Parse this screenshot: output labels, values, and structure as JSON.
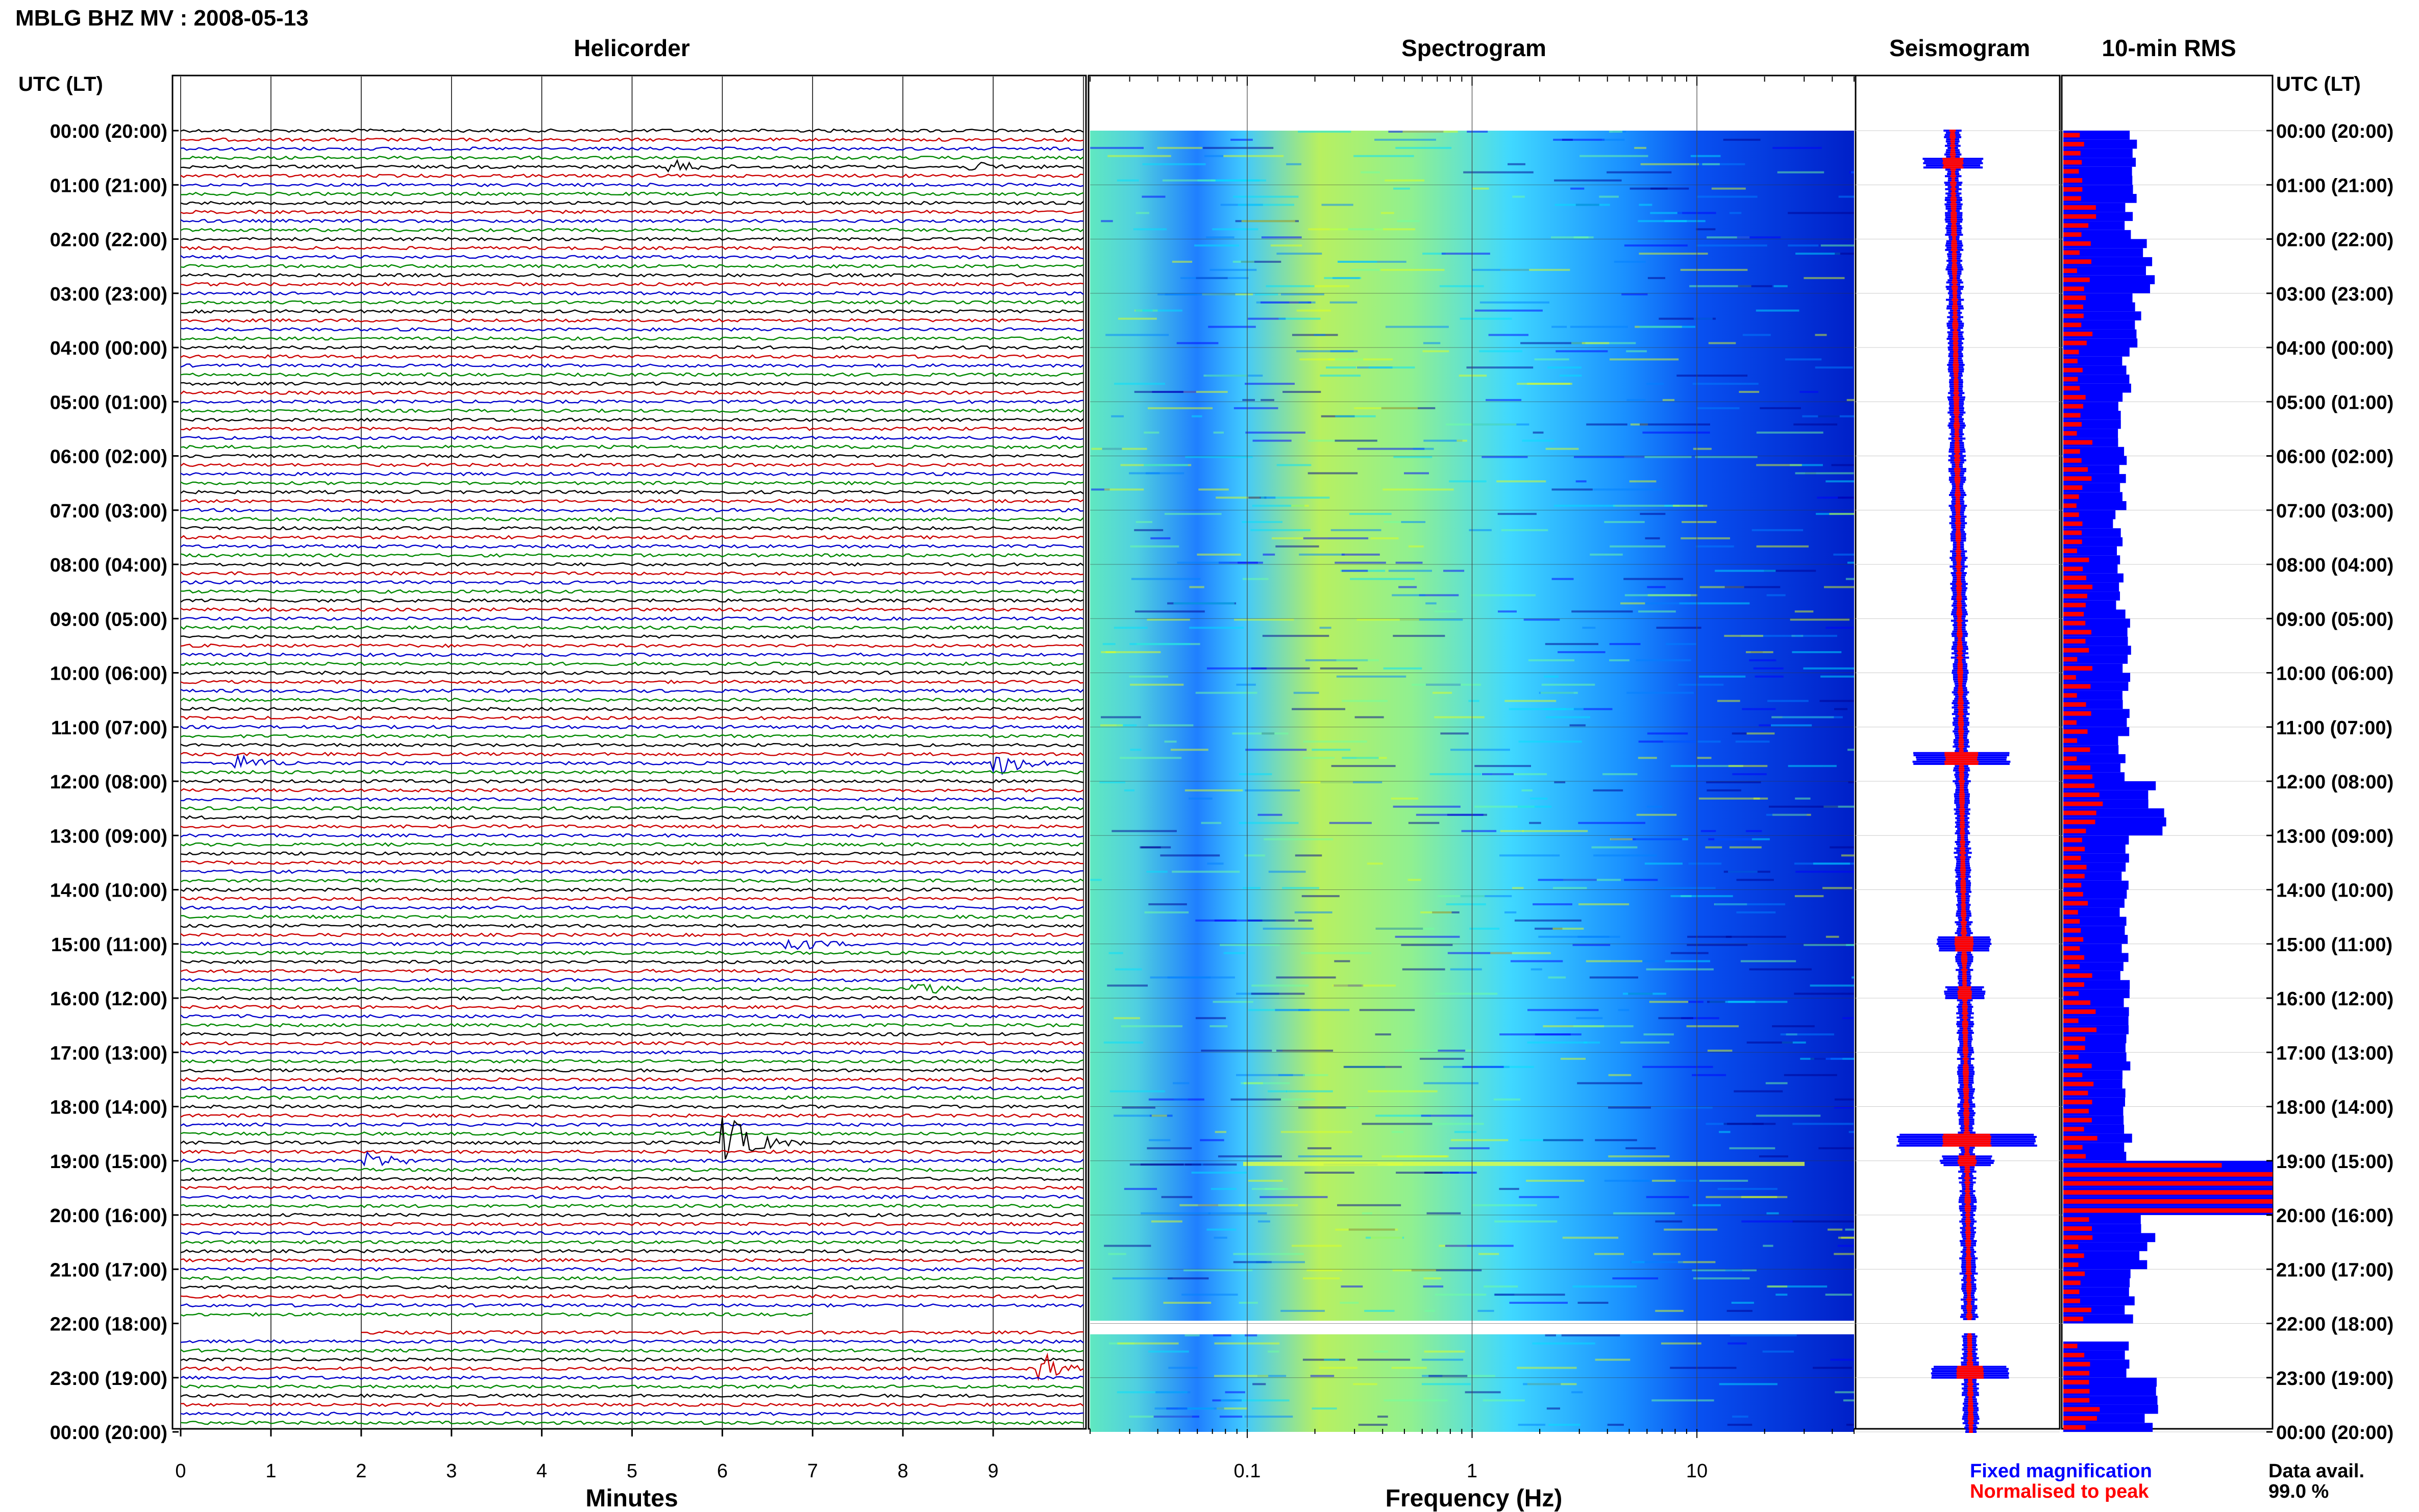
{
  "chart_data": {
    "type": "heatmap",
    "title": "MBLG BHZ MV : 2008-05-13",
    "panels": {
      "helicorder": "Helicorder",
      "spectrogram": "Spectrogram",
      "seismogram": "Seismogram",
      "rms": "10-min RMS"
    },
    "time_axis_label": "UTC (LT)",
    "time_ticks": [
      "00:00 (20:00)",
      "01:00 (21:00)",
      "02:00 (22:00)",
      "03:00 (23:00)",
      "04:00 (00:00)",
      "05:00 (01:00)",
      "06:00 (02:00)",
      "07:00 (03:00)",
      "08:00 (04:00)",
      "09:00 (05:00)",
      "10:00 (06:00)",
      "11:00 (07:00)",
      "12:00 (08:00)",
      "13:00 (09:00)",
      "14:00 (10:00)",
      "15:00 (11:00)",
      "16:00 (12:00)",
      "17:00 (13:00)",
      "18:00 (14:00)",
      "19:00 (15:00)",
      "20:00 (16:00)",
      "21:00 (17:00)",
      "22:00 (18:00)",
      "23:00 (19:00)",
      "00:00 (20:00)"
    ],
    "helicorder_xlabel": "Minutes",
    "helicorder_xticks": [
      "0",
      "1",
      "2",
      "3",
      "4",
      "5",
      "6",
      "7",
      "8",
      "9"
    ],
    "helicorder_xlim": [
      0,
      10
    ],
    "spectrogram_xlabel": "Frequency (Hz)",
    "spectrogram_xticks": [
      {
        "value": 0.1,
        "label": "0.1"
      },
      {
        "value": 1,
        "label": "1"
      },
      {
        "value": 10,
        "label": "10"
      }
    ],
    "spectrogram_xlim": [
      0.02,
      50
    ],
    "spectrogram_xscale": "log",
    "trace_colors": [
      "#000000",
      "#cc0000",
      "#0000cc",
      "#008800"
    ],
    "spectrogram_colormap": [
      "#00008f",
      "#0000ff",
      "#0080ff",
      "#00e0ff",
      "#70ffa0",
      "#e0ff20"
    ],
    "data_gap_utc": [
      21.95,
      22.2
    ],
    "events": [
      {
        "time_utc": 0.6,
        "minute": 5.5,
        "size": 0.4
      },
      {
        "time_utc": 0.6,
        "minute": 8.8,
        "size": 0.3
      },
      {
        "time_utc": 11.6,
        "minute": 0.7,
        "size": 0.5
      },
      {
        "time_utc": 11.6,
        "minute": 9.1,
        "size": 0.8
      },
      {
        "time_utc": 15.0,
        "minute": 6.8,
        "size": 0.6
      },
      {
        "time_utc": 15.9,
        "minute": 8.2,
        "size": 0.4
      },
      {
        "time_utc": 18.6,
        "minute": 6.1,
        "size": 2.0
      },
      {
        "time_utc": 19.0,
        "minute": 2.1,
        "size": 0.6
      },
      {
        "time_utc": 22.9,
        "minute": 9.6,
        "size": 1.0
      }
    ],
    "rms_fixed": [
      0.32,
      0.32,
      0.4,
      0.35,
      0.3,
      0.28,
      0.28,
      0.26,
      0.28,
      0.3,
      0.3,
      0.29,
      0.45,
      0.3,
      0.29,
      0.3,
      0.32,
      0.3,
      0.3,
      1.2,
      0.4,
      0.32,
      0.3,
      0.42,
      0.33
    ],
    "rms_normalised": [
      0.08,
      0.12,
      0.1,
      0.1,
      0.1,
      0.1,
      0.1,
      0.1,
      0.1,
      0.1,
      0.1,
      0.1,
      0.15,
      0.1,
      0.1,
      0.12,
      0.12,
      0.12,
      0.12,
      1.2,
      0.1,
      0.1,
      0.1,
      0.14,
      0.1
    ],
    "legend": {
      "fixed": "Fixed magnification",
      "fixed_color": "#0000ff",
      "normalised": "Normalised to peak",
      "normalised_color": "#ff0000"
    },
    "data_avail_label": "Data avail.",
    "data_avail_value": "99.0 %"
  }
}
